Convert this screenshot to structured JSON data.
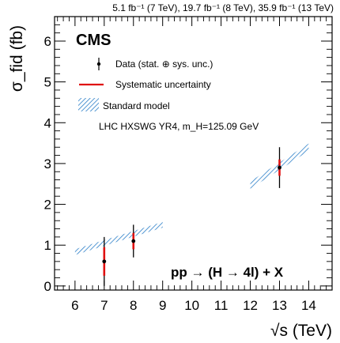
{
  "chart_data": {
    "type": "scatter",
    "lumi_label": "5.1 fb⁻¹ (7 TeV), 19.7 fb⁻¹ (8 TeV), 35.9 fb⁻¹ (13 TeV)",
    "experiment": "CMS",
    "process_label": "pp → (H → 4l) + X",
    "ylabel": "σ_fid (fb)",
    "xlabel": "√s (TeV)",
    "xlim": [
      5.3,
      14.8
    ],
    "ylim": [
      -0.1,
      6.6
    ],
    "xticks": [
      6,
      7,
      8,
      9,
      10,
      11,
      12,
      13,
      14
    ],
    "yticks": [
      0,
      1,
      2,
      3,
      4,
      5,
      6
    ],
    "legend": {
      "position": "top-left",
      "entries": [
        {
          "label": "Data (stat. ⊕ sys. unc.)",
          "style": "point-errorbar"
        },
        {
          "label": "Systematic uncertainty",
          "style": "red-line"
        },
        {
          "label": "Standard model",
          "style": "hatched-band"
        }
      ],
      "note": "LHC HXSWG YR4, m_H=125.09 GeV"
    },
    "series": [
      {
        "name": "Data",
        "x": [
          7,
          8,
          13
        ],
        "y": [
          0.6,
          1.1,
          2.9
        ],
        "stat_err_low": [
          0.6,
          0.4,
          0.5
        ],
        "stat_err_high": [
          0.6,
          0.4,
          0.5
        ],
        "sys_err_low": [
          0.35,
          0.2,
          0.2
        ],
        "sys_err_high": [
          0.35,
          0.2,
          0.2
        ]
      }
    ],
    "sm_band": [
      {
        "x_from": 6.0,
        "x_to": 9.0,
        "y_from": 0.83,
        "y_to": 1.5,
        "half_width": 0.07
      },
      {
        "x_from": 12.0,
        "x_to": 14.0,
        "y_from": 2.47,
        "y_to": 3.4,
        "half_width": 0.09
      }
    ],
    "colors": {
      "data": "#000000",
      "systematic": "#e01010",
      "sm_band": "#2a7ec8"
    },
    "grid": false
  }
}
